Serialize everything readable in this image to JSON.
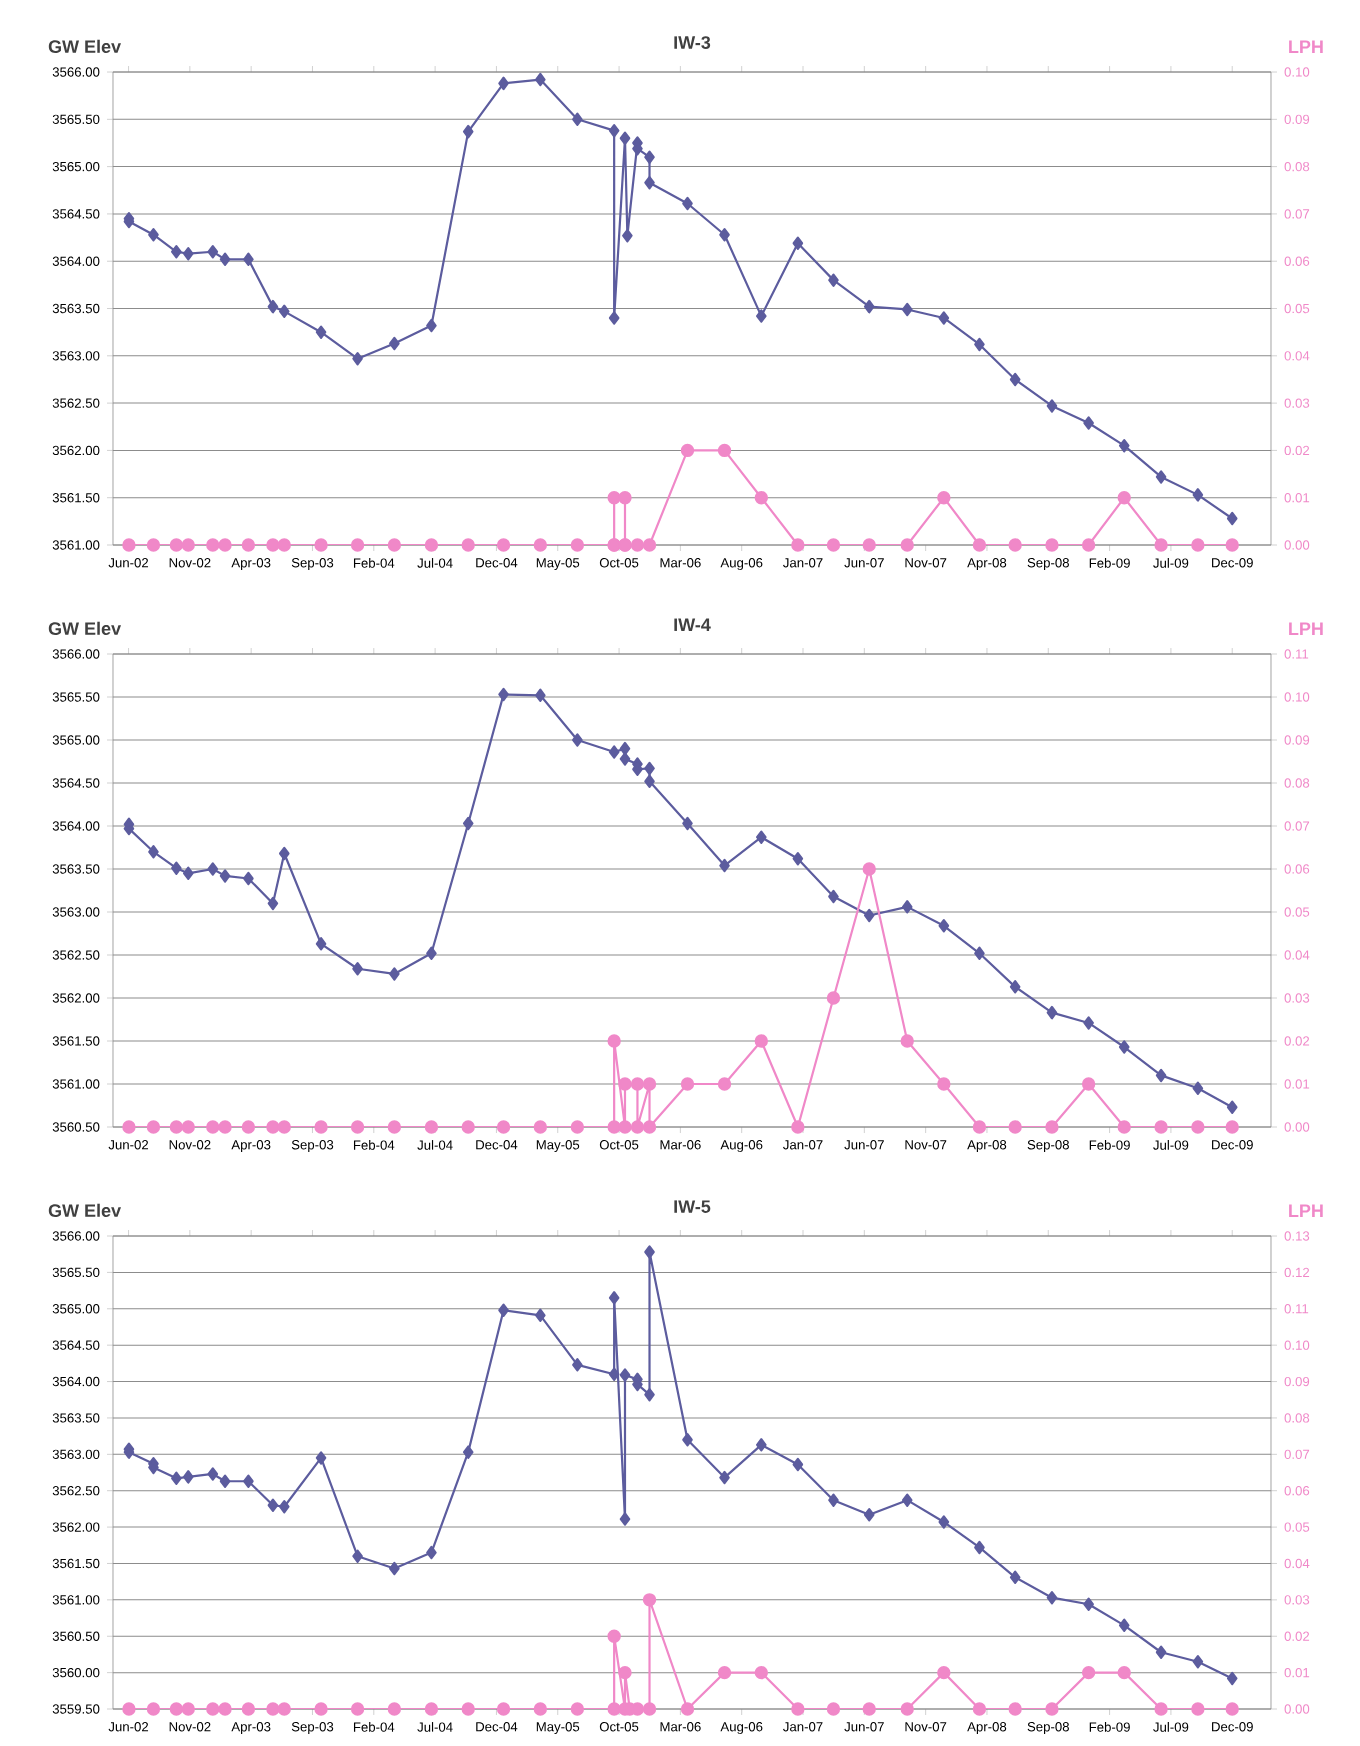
{
  "chart_data": [
    {
      "type": "line",
      "title": "IW-3",
      "ylabel": "GW Elev",
      "y2label": "LPH",
      "grid": "y",
      "xlim": [
        "2002-04-23",
        "2010-03-06"
      ],
      "xticks": [
        {
          "value": "2002-06-01",
          "label": "Jun-02"
        },
        {
          "value": "2002-11-01",
          "label": "Nov-02"
        },
        {
          "value": "2003-04-01",
          "label": "Apr-03"
        },
        {
          "value": "2003-09-01",
          "label": "Sep-03"
        },
        {
          "value": "2004-02-01",
          "label": "Feb-04"
        },
        {
          "value": "2004-07-01",
          "label": "Jul-04"
        },
        {
          "value": "2004-12-01",
          "label": "Dec-04"
        },
        {
          "value": "2005-05-01",
          "label": "May-05"
        },
        {
          "value": "2005-10-01",
          "label": "Oct-05"
        },
        {
          "value": "2006-03-01",
          "label": "Mar-06"
        },
        {
          "value": "2006-08-01",
          "label": "Aug-06"
        },
        {
          "value": "2007-01-01",
          "label": "Jan-07"
        },
        {
          "value": "2007-06-01",
          "label": "Jun-07"
        },
        {
          "value": "2007-11-01",
          "label": "Nov-07"
        },
        {
          "value": "2008-04-01",
          "label": "Apr-08"
        },
        {
          "value": "2008-09-01",
          "label": "Sep-08"
        },
        {
          "value": "2009-02-01",
          "label": "Feb-09"
        },
        {
          "value": "2009-07-01",
          "label": "Jul-09"
        },
        {
          "value": "2009-12-01",
          "label": "Dec-09"
        }
      ],
      "ylim": [
        3561,
        3566
      ],
      "yticks": [
        {
          "value": 3561,
          "label": "3561.00"
        },
        {
          "value": 3561.5,
          "label": "3561.50"
        },
        {
          "value": 3562,
          "label": "3562.00"
        },
        {
          "value": 3562.5,
          "label": "3562.50"
        },
        {
          "value": 3563,
          "label": "3563.00"
        },
        {
          "value": 3563.5,
          "label": "3563.50"
        },
        {
          "value": 3564,
          "label": "3564.00"
        },
        {
          "value": 3564.5,
          "label": "3564.50"
        },
        {
          "value": 3565,
          "label": "3565.00"
        },
        {
          "value": 3565.5,
          "label": "3565.50"
        },
        {
          "value": 3566,
          "label": "3566.00"
        }
      ],
      "y2lim": [
        0,
        0.1
      ],
      "y2ticks": [
        {
          "value": 0,
          "label": "0.00"
        },
        {
          "value": 0.01,
          "label": "0.01"
        },
        {
          "value": 0.02,
          "label": "0.02"
        },
        {
          "value": 0.03,
          "label": "0.03"
        },
        {
          "value": 0.04,
          "label": "0.04"
        },
        {
          "value": 0.05,
          "label": "0.05"
        },
        {
          "value": 0.06,
          "label": "0.06"
        },
        {
          "value": 0.07,
          "label": "0.07"
        },
        {
          "value": 0.08,
          "label": "0.08"
        },
        {
          "value": 0.09,
          "label": "0.09"
        },
        {
          "value": 0.1,
          "label": "0.10"
        }
      ],
      "series": [
        {
          "color": "#5c5c9e",
          "marker": "diamond",
          "x": [
            "2002-06-02",
            "2002-06-02",
            "2002-08-02",
            "2002-09-28",
            "2002-10-28",
            "2002-12-28",
            "2003-01-28",
            "2003-03-25",
            "2003-05-25",
            "2003-06-22",
            "2003-09-22",
            "2003-12-22",
            "2004-03-22",
            "2004-06-22",
            "2004-09-22",
            "2004-12-19",
            "2005-03-19",
            "2005-06-19",
            "2005-09-19",
            "2005-09-19",
            "2005-10-16",
            "2005-10-22",
            "2005-11-16",
            "2005-11-16",
            "2005-12-16",
            "2005-12-16",
            "2006-03-19",
            "2006-06-19",
            "2006-09-19",
            "2006-12-19",
            "2007-03-16",
            "2007-06-13",
            "2007-09-16",
            "2007-12-16",
            "2008-03-13",
            "2008-06-10",
            "2008-09-10",
            "2008-12-10",
            "2009-03-07",
            "2009-06-07",
            "2009-09-07",
            "2009-12-01"
          ],
          "values": [
            3564.45,
            3564.42,
            3564.28,
            3564.1,
            3564.08,
            3564.1,
            3564.02,
            3564.02,
            3563.52,
            3563.47,
            3563.25,
            3562.97,
            3563.13,
            3563.32,
            3565.37,
            3565.88,
            3565.92,
            3565.5,
            3565.38,
            3563.4,
            3565.3,
            3564.27,
            3565.25,
            3565.19,
            3565.1,
            3564.83,
            3564.61,
            3564.28,
            3563.42,
            3564.19,
            3563.8,
            3563.52,
            3563.49,
            3563.4,
            3563.12,
            3562.75,
            3562.47,
            3562.29,
            3562.05,
            3561.72,
            3561.53,
            3561.28
          ]
        },
        {
          "color": "#f088c8",
          "marker": "circle",
          "axis": "y2",
          "x": [
            "2002-06-02",
            "2002-08-02",
            "2002-09-28",
            "2002-10-28",
            "2002-12-28",
            "2003-01-28",
            "2003-03-25",
            "2003-05-25",
            "2003-06-22",
            "2003-09-22",
            "2003-12-22",
            "2004-03-22",
            "2004-06-22",
            "2004-09-22",
            "2004-12-19",
            "2005-03-19",
            "2005-06-19",
            "2005-09-19",
            "2005-09-19",
            "2005-09-19",
            "2005-10-16",
            "2005-10-16",
            "2005-10-16",
            "2005-11-16",
            "2005-12-16",
            "2006-03-19",
            "2006-06-19",
            "2006-09-19",
            "2006-12-19",
            "2007-03-16",
            "2007-06-13",
            "2007-09-16",
            "2007-12-16",
            "2008-03-13",
            "2008-06-10",
            "2008-09-10",
            "2008-12-10",
            "2009-03-07",
            "2009-06-07",
            "2009-09-07",
            "2009-12-01"
          ],
          "values": [
            0,
            0,
            0,
            0,
            0,
            0,
            0,
            0,
            0,
            0,
            0,
            0,
            0,
            0,
            0,
            0,
            0,
            0,
            0.01,
            0,
            0,
            0.01,
            0,
            0,
            0,
            0.02,
            0.02,
            0.01,
            0,
            0,
            0,
            0,
            0.01,
            0,
            0,
            0,
            0,
            0.01,
            0,
            0,
            0
          ]
        }
      ]
    },
    {
      "type": "line",
      "title": "IW-4",
      "ylabel": "GW Elev",
      "y2label": "LPH",
      "grid": "y",
      "xlim": [
        "2002-04-23",
        "2010-03-06"
      ],
      "xticks": [
        {
          "value": "2002-06-01",
          "label": "Jun-02"
        },
        {
          "value": "2002-11-01",
          "label": "Nov-02"
        },
        {
          "value": "2003-04-01",
          "label": "Apr-03"
        },
        {
          "value": "2003-09-01",
          "label": "Sep-03"
        },
        {
          "value": "2004-02-01",
          "label": "Feb-04"
        },
        {
          "value": "2004-07-01",
          "label": "Jul-04"
        },
        {
          "value": "2004-12-01",
          "label": "Dec-04"
        },
        {
          "value": "2005-05-01",
          "label": "May-05"
        },
        {
          "value": "2005-10-01",
          "label": "Oct-05"
        },
        {
          "value": "2006-03-01",
          "label": "Mar-06"
        },
        {
          "value": "2006-08-01",
          "label": "Aug-06"
        },
        {
          "value": "2007-01-01",
          "label": "Jan-07"
        },
        {
          "value": "2007-06-01",
          "label": "Jun-07"
        },
        {
          "value": "2007-11-01",
          "label": "Nov-07"
        },
        {
          "value": "2008-04-01",
          "label": "Apr-08"
        },
        {
          "value": "2008-09-01",
          "label": "Sep-08"
        },
        {
          "value": "2009-02-01",
          "label": "Feb-09"
        },
        {
          "value": "2009-07-01",
          "label": "Jul-09"
        },
        {
          "value": "2009-12-01",
          "label": "Dec-09"
        }
      ],
      "ylim": [
        3560.5,
        3566
      ],
      "yticks": [
        {
          "value": 3560.5,
          "label": "3560.50"
        },
        {
          "value": 3561,
          "label": "3561.00"
        },
        {
          "value": 3561.5,
          "label": "3561.50"
        },
        {
          "value": 3562,
          "label": "3562.00"
        },
        {
          "value": 3562.5,
          "label": "3562.50"
        },
        {
          "value": 3563,
          "label": "3563.00"
        },
        {
          "value": 3563.5,
          "label": "3563.50"
        },
        {
          "value": 3564,
          "label": "3564.00"
        },
        {
          "value": 3564.5,
          "label": "3564.50"
        },
        {
          "value": 3565,
          "label": "3565.00"
        },
        {
          "value": 3565.5,
          "label": "3565.50"
        },
        {
          "value": 3566,
          "label": "3566.00"
        }
      ],
      "y2lim": [
        0,
        0.11
      ],
      "y2ticks": [
        {
          "value": 0,
          "label": "0.00"
        },
        {
          "value": 0.01,
          "label": "0.01"
        },
        {
          "value": 0.02,
          "label": "0.02"
        },
        {
          "value": 0.03,
          "label": "0.03"
        },
        {
          "value": 0.04,
          "label": "0.04"
        },
        {
          "value": 0.05,
          "label": "0.05"
        },
        {
          "value": 0.06,
          "label": "0.06"
        },
        {
          "value": 0.07,
          "label": "0.07"
        },
        {
          "value": 0.08,
          "label": "0.08"
        },
        {
          "value": 0.09,
          "label": "0.09"
        },
        {
          "value": 0.1,
          "label": "0.10"
        },
        {
          "value": 0.11,
          "label": "0.11"
        }
      ],
      "series": [
        {
          "color": "#5c5c9e",
          "marker": "diamond",
          "x": [
            "2002-06-02",
            "2002-06-02",
            "2002-08-02",
            "2002-09-28",
            "2002-10-28",
            "2002-12-28",
            "2003-01-28",
            "2003-03-25",
            "2003-05-25",
            "2003-06-22",
            "2003-09-22",
            "2003-12-22",
            "2004-03-22",
            "2004-06-22",
            "2004-09-22",
            "2004-12-19",
            "2005-03-19",
            "2005-06-19",
            "2005-09-19",
            "2005-10-16",
            "2005-10-16",
            "2005-11-16",
            "2005-11-16",
            "2005-12-16",
            "2005-12-16",
            "2006-03-19",
            "2006-06-19",
            "2006-09-19",
            "2006-12-19",
            "2007-03-16",
            "2007-06-13",
            "2007-09-16",
            "2007-12-16",
            "2008-03-13",
            "2008-06-10",
            "2008-09-10",
            "2008-12-10",
            "2009-03-07",
            "2009-06-07",
            "2009-09-07",
            "2009-12-01"
          ],
          "values": [
            3564.02,
            3563.97,
            3563.7,
            3563.51,
            3563.45,
            3563.5,
            3563.42,
            3563.39,
            3563.1,
            3563.68,
            3562.63,
            3562.34,
            3562.28,
            3562.52,
            3564.03,
            3565.53,
            3565.52,
            3565.0,
            3564.86,
            3564.9,
            3564.78,
            3564.72,
            3564.66,
            3564.67,
            3564.52,
            3564.03,
            3563.54,
            3563.87,
            3563.62,
            3563.18,
            3562.96,
            3563.06,
            3562.84,
            3562.52,
            3562.13,
            3561.83,
            3561.71,
            3561.43,
            3561.1,
            3560.95,
            3560.73
          ]
        },
        {
          "color": "#f088c8",
          "marker": "circle",
          "axis": "y2",
          "x": [
            "2002-06-02",
            "2002-08-02",
            "2002-09-28",
            "2002-10-28",
            "2002-12-28",
            "2003-01-28",
            "2003-03-25",
            "2003-05-25",
            "2003-06-22",
            "2003-09-22",
            "2003-12-22",
            "2004-03-22",
            "2004-06-22",
            "2004-09-22",
            "2004-12-19",
            "2005-03-19",
            "2005-06-19",
            "2005-09-19",
            "2005-09-19",
            "2005-10-16",
            "2005-10-16",
            "2005-11-16",
            "2005-11-16",
            "2005-12-16",
            "2005-12-16",
            "2006-03-19",
            "2006-06-19",
            "2006-09-19",
            "2006-12-19",
            "2007-03-16",
            "2007-06-13",
            "2007-09-16",
            "2007-12-16",
            "2008-03-13",
            "2008-06-10",
            "2008-09-10",
            "2008-12-10",
            "2009-03-07",
            "2009-06-07",
            "2009-09-07",
            "2009-12-01"
          ],
          "values": [
            0,
            0,
            0,
            0,
            0,
            0,
            0,
            0,
            0,
            0,
            0,
            0,
            0,
            0,
            0,
            0,
            0,
            0,
            0.02,
            0,
            0.01,
            0.01,
            0,
            0.01,
            0,
            0.01,
            0.01,
            0.02,
            0,
            0.03,
            0.06,
            0.02,
            0.01,
            0,
            0,
            0,
            0.01,
            0,
            0,
            0,
            0
          ]
        }
      ]
    },
    {
      "type": "line",
      "title": "IW-5",
      "ylabel": "GW Elev",
      "y2label": "LPH",
      "grid": "y",
      "xlim": [
        "2002-04-23",
        "2010-03-06"
      ],
      "xticks": [
        {
          "value": "2002-06-01",
          "label": "Jun-02"
        },
        {
          "value": "2002-11-01",
          "label": "Nov-02"
        },
        {
          "value": "2003-04-01",
          "label": "Apr-03"
        },
        {
          "value": "2003-09-01",
          "label": "Sep-03"
        },
        {
          "value": "2004-02-01",
          "label": "Feb-04"
        },
        {
          "value": "2004-07-01",
          "label": "Jul-04"
        },
        {
          "value": "2004-12-01",
          "label": "Dec-04"
        },
        {
          "value": "2005-05-01",
          "label": "May-05"
        },
        {
          "value": "2005-10-01",
          "label": "Oct-05"
        },
        {
          "value": "2006-03-01",
          "label": "Mar-06"
        },
        {
          "value": "2006-08-01",
          "label": "Aug-06"
        },
        {
          "value": "2007-01-01",
          "label": "Jan-07"
        },
        {
          "value": "2007-06-01",
          "label": "Jun-07"
        },
        {
          "value": "2007-11-01",
          "label": "Nov-07"
        },
        {
          "value": "2008-04-01",
          "label": "Apr-08"
        },
        {
          "value": "2008-09-01",
          "label": "Sep-08"
        },
        {
          "value": "2009-02-01",
          "label": "Feb-09"
        },
        {
          "value": "2009-07-01",
          "label": "Jul-09"
        },
        {
          "value": "2009-12-01",
          "label": "Dec-09"
        }
      ],
      "ylim": [
        3559.5,
        3566
      ],
      "yticks": [
        {
          "value": 3559.5,
          "label": "3559.50"
        },
        {
          "value": 3560,
          "label": "3560.00"
        },
        {
          "value": 3560.5,
          "label": "3560.50"
        },
        {
          "value": 3561,
          "label": "3561.00"
        },
        {
          "value": 3561.5,
          "label": "3561.50"
        },
        {
          "value": 3562,
          "label": "3562.00"
        },
        {
          "value": 3562.5,
          "label": "3562.50"
        },
        {
          "value": 3563,
          "label": "3563.00"
        },
        {
          "value": 3563.5,
          "label": "3563.50"
        },
        {
          "value": 3564,
          "label": "3564.00"
        },
        {
          "value": 3564.5,
          "label": "3564.50"
        },
        {
          "value": 3565,
          "label": "3565.00"
        },
        {
          "value": 3565.5,
          "label": "3565.50"
        },
        {
          "value": 3566,
          "label": "3566.00"
        }
      ],
      "y2lim": [
        0,
        0.13
      ],
      "y2ticks": [
        {
          "value": 0,
          "label": "0.00"
        },
        {
          "value": 0.01,
          "label": "0.01"
        },
        {
          "value": 0.02,
          "label": "0.02"
        },
        {
          "value": 0.03,
          "label": "0.03"
        },
        {
          "value": 0.04,
          "label": "0.04"
        },
        {
          "value": 0.05,
          "label": "0.05"
        },
        {
          "value": 0.06,
          "label": "0.06"
        },
        {
          "value": 0.07,
          "label": "0.07"
        },
        {
          "value": 0.08,
          "label": "0.08"
        },
        {
          "value": 0.09,
          "label": "0.09"
        },
        {
          "value": 0.1,
          "label": "0.10"
        },
        {
          "value": 0.11,
          "label": "0.11"
        },
        {
          "value": 0.12,
          "label": "0.12"
        },
        {
          "value": 0.13,
          "label": "0.13"
        }
      ],
      "series": [
        {
          "color": "#5c5c9e",
          "marker": "diamond",
          "x": [
            "2002-06-02",
            "2002-06-02",
            "2002-08-02",
            "2002-08-02",
            "2002-09-28",
            "2002-10-28",
            "2002-12-28",
            "2003-01-28",
            "2003-03-25",
            "2003-05-25",
            "2003-06-22",
            "2003-09-22",
            "2003-12-22",
            "2004-03-22",
            "2004-06-22",
            "2004-09-22",
            "2004-12-19",
            "2005-03-19",
            "2005-06-19",
            "2005-09-19",
            "2005-09-19",
            "2005-10-16",
            "2005-10-16",
            "2005-11-16",
            "2005-11-16",
            "2005-12-16",
            "2005-12-16",
            "2006-03-19",
            "2006-06-19",
            "2006-09-19",
            "2006-12-19",
            "2007-03-16",
            "2007-06-13",
            "2007-09-16",
            "2007-12-16",
            "2008-03-13",
            "2008-06-10",
            "2008-09-10",
            "2008-12-10",
            "2009-03-07",
            "2009-06-07",
            "2009-09-07",
            "2009-12-01"
          ],
          "values": [
            3563.07,
            3563.03,
            3562.87,
            3562.82,
            3562.67,
            3562.69,
            3562.73,
            3562.63,
            3562.63,
            3562.3,
            3562.28,
            3562.95,
            3561.6,
            3561.43,
            3561.65,
            3563.03,
            3564.98,
            3564.91,
            3564.23,
            3564.1,
            3565.15,
            3562.11,
            3564.09,
            3564.03,
            3563.96,
            3563.82,
            3565.78,
            3563.2,
            3562.68,
            3563.13,
            3562.86,
            3562.37,
            3562.17,
            3562.37,
            3562.07,
            3561.72,
            3561.31,
            3561.03,
            3560.94,
            3560.65,
            3560.28,
            3560.15,
            3559.92
          ]
        },
        {
          "color": "#f088c8",
          "marker": "circle",
          "axis": "y2",
          "x": [
            "2002-06-02",
            "2002-08-02",
            "2002-09-28",
            "2002-10-28",
            "2002-12-28",
            "2003-01-28",
            "2003-03-25",
            "2003-05-25",
            "2003-06-22",
            "2003-09-22",
            "2003-12-22",
            "2004-03-22",
            "2004-06-22",
            "2004-09-22",
            "2004-12-19",
            "2005-03-19",
            "2005-06-19",
            "2005-09-19",
            "2005-09-19",
            "2005-10-16",
            "2005-10-16",
            "2005-10-28",
            "2005-11-16",
            "2005-12-16",
            "2005-12-16",
            "2006-03-19",
            "2006-06-19",
            "2006-09-19",
            "2006-12-19",
            "2007-03-16",
            "2007-06-13",
            "2007-09-16",
            "2007-12-16",
            "2008-03-13",
            "2008-06-10",
            "2008-09-10",
            "2008-12-10",
            "2009-03-07",
            "2009-06-07",
            "2009-09-07",
            "2009-12-01"
          ],
          "values": [
            0,
            0,
            0,
            0,
            0,
            0,
            0,
            0,
            0,
            0,
            0,
            0,
            0,
            0,
            0,
            0,
            0,
            0,
            0.02,
            0,
            0.01,
            0,
            0,
            0,
            0.03,
            0,
            0.01,
            0.01,
            0,
            0,
            0,
            0,
            0.01,
            0,
            0,
            0,
            0.01,
            0.01,
            0,
            0,
            0
          ]
        }
      ]
    }
  ]
}
